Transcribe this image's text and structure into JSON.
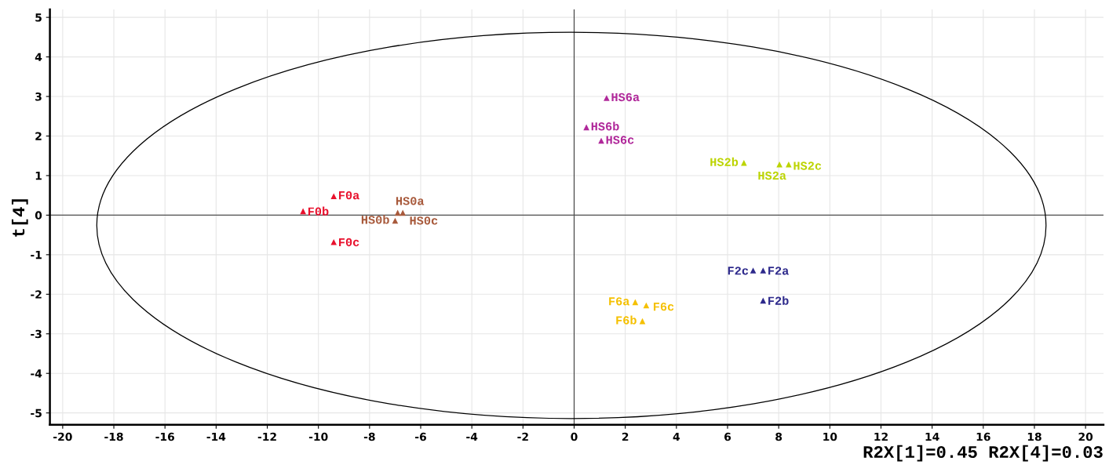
{
  "chart_data": {
    "type": "scatter",
    "ylabel": "t[4]",
    "xlabel": "R2X[1]=0.45 R2X[4]=0.03",
    "xlim": [
      -20.5,
      20.7
    ],
    "ylim": [
      -5.3,
      5.2
    ],
    "xticks": [
      -20,
      -18,
      -16,
      -14,
      -12,
      -10,
      -8,
      -6,
      -4,
      -2,
      0,
      2,
      4,
      6,
      8,
      10,
      12,
      14,
      16,
      18,
      20
    ],
    "yticks": [
      -5,
      -4,
      -3,
      -2,
      -1,
      0,
      1,
      2,
      3,
      4,
      5
    ],
    "grid": true,
    "marker": "triangle",
    "series": [
      {
        "color": "#e8112d",
        "x": [
          -9.4,
          -10.6,
          -9.4
        ],
        "values": [
          0.48,
          0.1,
          -0.68
        ]
      },
      {
        "color": "#a85a3c",
        "x": [
          -6.9,
          -7.0,
          -6.7
        ],
        "values": [
          0.06,
          -0.14,
          0.06
        ]
      },
      {
        "color": "#b0289a",
        "x": [
          1.27,
          0.48,
          1.06
        ],
        "values": [
          2.96,
          2.22,
          1.88
        ]
      },
      {
        "color": "#bcd400",
        "x": [
          8.03,
          6.64,
          8.39
        ],
        "values": [
          1.28,
          1.32,
          1.28
        ]
      },
      {
        "color": "#2e2a8c",
        "x": [
          7.39,
          7.39,
          7.0
        ],
        "values": [
          -1.4,
          -2.16,
          -1.4
        ]
      },
      {
        "color": "#f5c000",
        "x": [
          2.39,
          2.67,
          2.82
        ],
        "values": [
          -2.2,
          -2.68,
          -2.28
        ]
      }
    ],
    "ref_lines": [
      {
        "axis": "x",
        "value": 0,
        "color": "#3a3a3a"
      },
      {
        "axis": "y",
        "value": 0,
        "color": "#505050"
      }
    ],
    "annotations": [
      {
        "text": "F0a",
        "x": -9.4,
        "y": 0.48
      },
      {
        "text": "F0b",
        "x": -10.6,
        "y": 0.1
      },
      {
        "text": "F0c",
        "x": -9.4,
        "y": -0.68
      },
      {
        "text": "HS0a",
        "x": -6.9,
        "y": 0.06
      },
      {
        "text": "HS0b",
        "x": -7.0,
        "y": -0.14
      },
      {
        "text": "HS0c",
        "x": -6.7,
        "y": 0.06
      },
      {
        "text": "HS6a",
        "x": 1.27,
        "y": 2.96
      },
      {
        "text": "HS6b",
        "x": 0.48,
        "y": 2.22
      },
      {
        "text": "HS6c",
        "x": 1.06,
        "y": 1.88
      },
      {
        "text": "HS2a",
        "x": 8.03,
        "y": 1.28
      },
      {
        "text": "HS2b",
        "x": 6.64,
        "y": 1.32
      },
      {
        "text": "HS2c",
        "x": 8.39,
        "y": 1.28
      },
      {
        "text": "F2a",
        "x": 7.39,
        "y": -1.4
      },
      {
        "text": "F2b",
        "x": 7.39,
        "y": -2.16
      },
      {
        "text": "F2c",
        "x": 7.0,
        "y": -1.4
      },
      {
        "text": "F6a",
        "x": 2.39,
        "y": -2.2
      },
      {
        "text": "F6b",
        "x": 2.67,
        "y": -2.68
      },
      {
        "text": "F6c",
        "x": 2.82,
        "y": -2.28
      }
    ]
  }
}
